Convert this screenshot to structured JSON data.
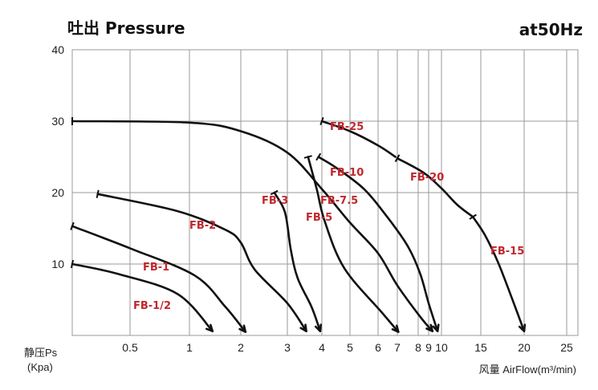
{
  "header": {
    "title": "吐出 Pressure",
    "frequency": "at50Hz"
  },
  "chart_data": {
    "type": "line",
    "title": "吐出 Pressure",
    "subtitle": "at50Hz",
    "ylabel_line1": "静压Ps",
    "ylabel_line2": "(Kpa)",
    "xlabel": "风量 AirFlow(m³/min)",
    "ylim": [
      0,
      40
    ],
    "y_ticks": [
      10,
      20,
      30,
      40
    ],
    "x_ticks": [
      "0.5",
      "1",
      "2",
      "3",
      "4",
      "5",
      "6",
      "7",
      "8",
      "9",
      "10",
      "15",
      "20",
      "25"
    ],
    "grid": true,
    "series": [
      {
        "name": "FB-1/2",
        "points": [
          [
            0.0,
            10
          ],
          [
            0.4,
            8.6
          ],
          [
            0.9,
            5.8
          ],
          [
            1.45,
            0.6
          ]
        ]
      },
      {
        "name": "FB-1",
        "points": [
          [
            0.0,
            15.3
          ],
          [
            0.5,
            12.2
          ],
          [
            1.1,
            8.4
          ],
          [
            1.7,
            4.0
          ],
          [
            2.1,
            0.5
          ]
        ]
      },
      {
        "name": "FB-2",
        "points": [
          [
            0.22,
            19.8
          ],
          [
            0.9,
            17.4
          ],
          [
            1.7,
            14.8
          ],
          [
            2.0,
            13.0
          ],
          [
            2.3,
            9.2
          ],
          [
            3.0,
            4.5
          ],
          [
            3.55,
            0.6
          ]
        ]
      },
      {
        "name": "FB-3",
        "points": [
          [
            2.72,
            20.0
          ],
          [
            2.95,
            17.2
          ],
          [
            3.1,
            12.0
          ],
          [
            3.3,
            8.0
          ],
          [
            3.7,
            4.0
          ],
          [
            3.95,
            0.6
          ]
        ]
      },
      {
        "name": "FB-5",
        "points": [
          [
            3.6,
            25.0
          ],
          [
            3.85,
            20.5
          ],
          [
            4.1,
            16.0
          ],
          [
            4.8,
            9.4
          ],
          [
            6.2,
            3.2
          ],
          [
            7.05,
            0.5
          ]
        ]
      },
      {
        "name": "FB-7.5",
        "points": [
          [
            0.0,
            30.0
          ],
          [
            1.0,
            29.8
          ],
          [
            2.0,
            28.6
          ],
          [
            3.0,
            25.6
          ],
          [
            4.0,
            20.5
          ],
          [
            5.0,
            15.8
          ],
          [
            6.0,
            11.5
          ],
          [
            7.0,
            7.0
          ],
          [
            8.3,
            2.4
          ],
          [
            9.3,
            0.6
          ]
        ]
      },
      {
        "name": "FB-10",
        "points": [
          [
            3.9,
            25.0
          ],
          [
            4.5,
            23.5
          ],
          [
            5.5,
            20.5
          ],
          [
            6.5,
            16.5
          ],
          [
            7.5,
            12.5
          ],
          [
            8.2,
            8.6
          ],
          [
            9.0,
            4.5
          ],
          [
            9.7,
            0.6
          ]
        ]
      },
      {
        "name": "FB-25",
        "points": [
          [
            4.0,
            30.0
          ],
          [
            5.0,
            28.6
          ],
          [
            6.0,
            26.6
          ],
          [
            6.9,
            25.0
          ]
        ]
      },
      {
        "name": "FB-20",
        "points": [
          [
            7.0,
            24.8
          ],
          [
            8.5,
            22.8
          ],
          [
            10.0,
            20.6
          ],
          [
            12.0,
            18.3
          ],
          [
            14.0,
            16.6
          ]
        ]
      },
      {
        "name": "FB-15",
        "points": [
          [
            14.0,
            16.6
          ],
          [
            15.5,
            14.0
          ],
          [
            17.0,
            10.2
          ],
          [
            18.5,
            5.5
          ],
          [
            20.0,
            0.6
          ]
        ]
      }
    ]
  }
}
